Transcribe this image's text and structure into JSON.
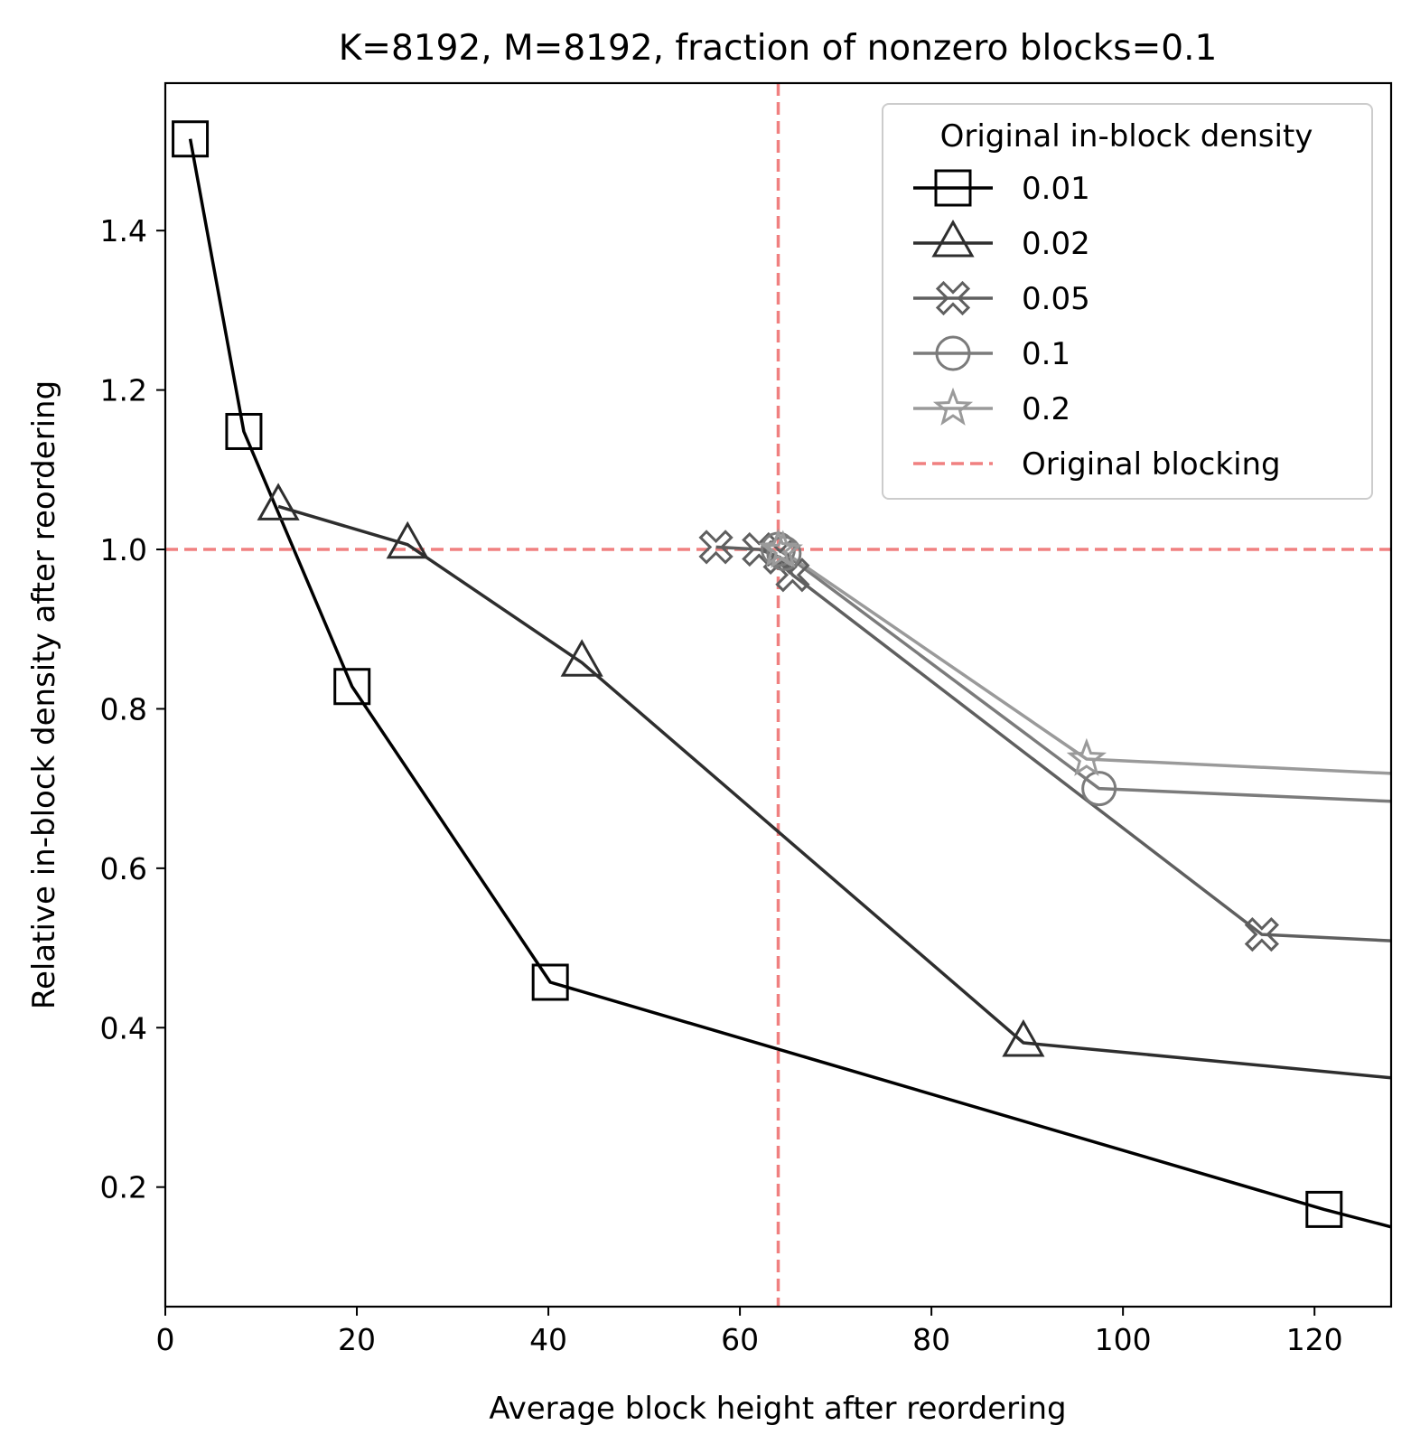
{
  "chart_data": {
    "type": "line",
    "title": "K=8192, M=8192, fraction of nonzero blocks=0.1",
    "xlabel": "Average block height after reordering",
    "ylabel": "Relative in-block density after reordering",
    "xlim": [
      0,
      128
    ],
    "ylim": [
      0.05,
      1.585
    ],
    "xticks": [
      0,
      20,
      40,
      60,
      80,
      100,
      120
    ],
    "xtick_labels": [
      "0",
      "20",
      "40",
      "60",
      "80",
      "100",
      "120"
    ],
    "yticks": [
      0.2,
      0.4,
      0.6,
      0.8,
      1.0,
      1.2,
      1.4
    ],
    "ytick_labels": [
      "0.2",
      "0.4",
      "0.6",
      "0.8",
      "1.0",
      "1.2",
      "1.4"
    ],
    "grid": false,
    "legend": {
      "title": "Original in-block density",
      "placement": "top-right",
      "reference_label": "Original blocking"
    },
    "reference_lines": {
      "x": 64,
      "y": 1.0,
      "color": "#f08080",
      "style": "dashed"
    },
    "series": [
      {
        "name": "0.01",
        "marker": "square",
        "color": "#000000",
        "x": [
          2.6,
          8.2,
          19.5,
          40.2,
          121.0,
          128.0
        ],
        "y": [
          1.515,
          1.148,
          0.828,
          0.457,
          0.172,
          0.15
        ],
        "markers_shown": [
          true,
          true,
          true,
          true,
          true,
          false
        ]
      },
      {
        "name": "0.02",
        "marker": "triangle",
        "color": "#2e2e2e",
        "x": [
          11.8,
          25.3,
          43.5,
          89.6,
          128.0
        ],
        "y": [
          1.054,
          1.006,
          0.858,
          0.381,
          0.337
        ],
        "markers_shown": [
          true,
          true,
          true,
          true,
          false
        ]
      },
      {
        "name": "0.05",
        "marker": "x-thick",
        "color": "#5f5f5f",
        "x": [
          57.5,
          62.0,
          64.2,
          65.5,
          114.5,
          128.0
        ],
        "y": [
          1.003,
          1.0,
          0.99,
          0.968,
          0.517,
          0.509
        ],
        "markers_shown": [
          true,
          true,
          true,
          true,
          true,
          false
        ]
      },
      {
        "name": "0.1",
        "marker": "circle",
        "color": "#7b7b7b",
        "x": [
          64.0,
          64.6,
          97.5,
          128.0
        ],
        "y": [
          1.0,
          0.995,
          0.7,
          0.684
        ],
        "markers_shown": [
          true,
          true,
          true,
          false
        ]
      },
      {
        "name": "0.2",
        "marker": "star",
        "color": "#9a9a9a",
        "x": [
          64.0,
          64.5,
          96.2,
          128.0
        ],
        "y": [
          1.0,
          0.998,
          0.737,
          0.719
        ],
        "markers_shown": [
          true,
          true,
          true,
          false
        ]
      }
    ]
  }
}
